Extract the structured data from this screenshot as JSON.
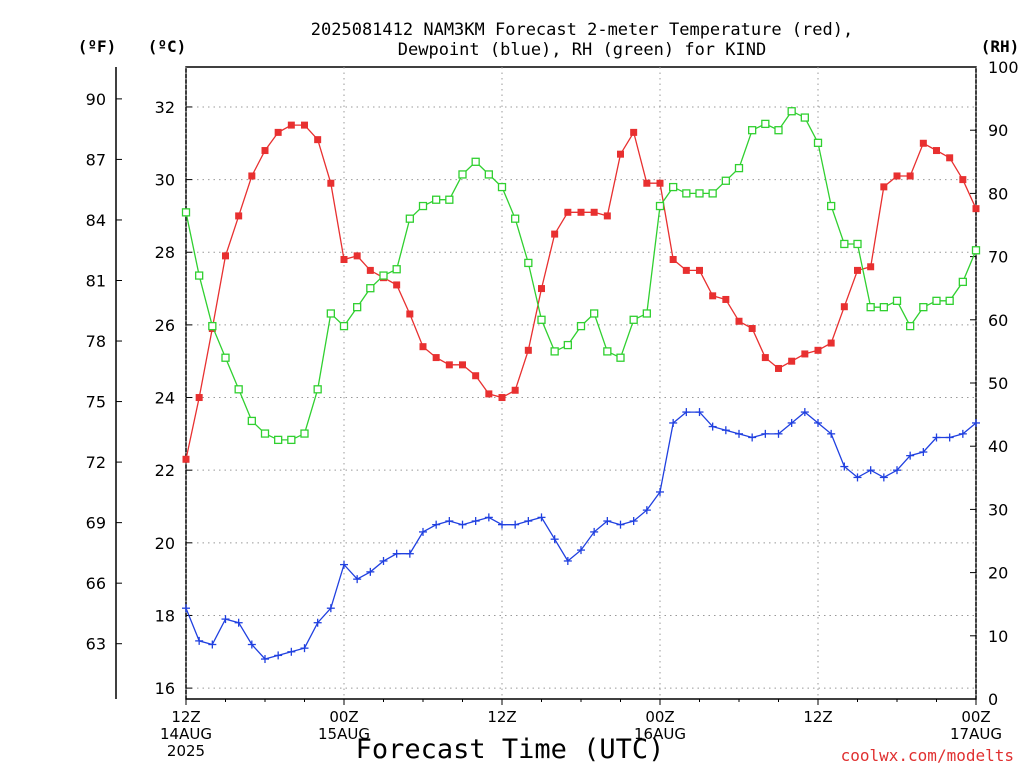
{
  "chart_data": {
    "type": "line",
    "title_line1": "2025081412 NAM3KM Forecast 2-meter Temperature (red),",
    "title_line2": "Dewpoint (blue), RH (green) for KIND",
    "axes": {
      "f": {
        "label": "(ºF)",
        "ticks": [
          "90",
          "87",
          "84",
          "81",
          "78",
          "75",
          "72",
          "69",
          "66",
          "63"
        ]
      },
      "c": {
        "label": "(ºC)",
        "ticks": [
          "32",
          "30",
          "28",
          "26",
          "24",
          "22",
          "20",
          "18",
          "16"
        ],
        "ylim": [
          15.7,
          33.1
        ]
      },
      "rh": {
        "label": "(RH)",
        "ticks": [
          "100",
          "90",
          "80",
          "70",
          "60",
          "50",
          "40",
          "30",
          "20",
          "10",
          "0"
        ],
        "ylim": [
          0,
          100
        ]
      }
    },
    "x_ticks": [
      {
        "hour": 0,
        "lines": [
          "12Z",
          "14AUG",
          "2025"
        ]
      },
      {
        "hour": 12,
        "lines": [
          "00Z",
          "15AUG"
        ]
      },
      {
        "hour": 24,
        "lines": [
          "12Z"
        ]
      },
      {
        "hour": 36,
        "lines": [
          "00Z",
          "16AUG"
        ]
      },
      {
        "hour": 48,
        "lines": [
          "12Z"
        ]
      },
      {
        "hour": 60,
        "lines": [
          "00Z",
          "17AUG"
        ]
      }
    ],
    "xlabel": "Forecast Time (UTC)",
    "credit": "coolwx.com/modelts",
    "xlim": [
      0,
      60
    ],
    "x": [
      0,
      1,
      2,
      3,
      4,
      5,
      6,
      7,
      8,
      9,
      10,
      11,
      12,
      13,
      14,
      15,
      16,
      17,
      18,
      19,
      20,
      21,
      22,
      23,
      24,
      25,
      26,
      27,
      28,
      29,
      30,
      31,
      32,
      33,
      34,
      35,
      36,
      37,
      38,
      39,
      40,
      41,
      42,
      43,
      44,
      45,
      46,
      47,
      48,
      49,
      50,
      51,
      52,
      53,
      54,
      55,
      56,
      57,
      58,
      59,
      60
    ],
    "series": [
      {
        "name": "Temperature",
        "color": "#e83030",
        "marker": "filled-square",
        "axis": "c",
        "values": [
          22.3,
          24.0,
          25.9,
          27.9,
          29.0,
          30.1,
          30.8,
          31.3,
          31.5,
          31.5,
          31.1,
          29.9,
          27.8,
          27.9,
          27.5,
          27.3,
          27.1,
          26.3,
          25.4,
          25.1,
          24.9,
          24.9,
          24.6,
          24.1,
          24.0,
          24.2,
          25.3,
          27.0,
          28.5,
          29.1,
          29.1,
          29.1,
          29.0,
          30.7,
          31.3,
          29.9,
          29.9,
          27.8,
          27.5,
          27.5,
          26.8,
          26.7,
          26.1,
          25.9,
          25.1,
          24.8,
          25.0,
          25.2,
          25.3,
          25.5,
          26.5,
          27.5,
          27.6,
          29.8,
          30.1,
          30.1,
          31.0,
          30.8,
          30.6,
          30.0,
          29.2
        ]
      },
      {
        "name": "Dewpoint",
        "color": "#2040e0",
        "marker": "plus",
        "axis": "c",
        "values": [
          18.2,
          17.3,
          17.2,
          17.9,
          17.8,
          17.2,
          16.8,
          16.9,
          17.0,
          17.1,
          17.8,
          18.2,
          19.4,
          19.0,
          19.2,
          19.5,
          19.7,
          19.7,
          20.3,
          20.5,
          20.6,
          20.5,
          20.6,
          20.7,
          20.5,
          20.5,
          20.6,
          20.7,
          20.1,
          19.5,
          19.8,
          20.3,
          20.6,
          20.5,
          20.6,
          20.9,
          21.4,
          23.3,
          23.6,
          23.6,
          23.2,
          23.1,
          23.0,
          22.9,
          23.0,
          23.0,
          23.3,
          23.6,
          23.3,
          23.0,
          22.1,
          21.8,
          22.0,
          21.8,
          22.0,
          22.4,
          22.5,
          22.9,
          22.9,
          23.0,
          23.3
        ]
      },
      {
        "name": "RH",
        "color": "#30d030",
        "marker": "open-square",
        "axis": "rh",
        "values": [
          77,
          67,
          59,
          54,
          49,
          44,
          42,
          41,
          41,
          42,
          49,
          61,
          59,
          62,
          65,
          67,
          68,
          76,
          78,
          79,
          79,
          83,
          85,
          83,
          81,
          76,
          69,
          60,
          55,
          56,
          59,
          61,
          55,
          54,
          60,
          61,
          78,
          81,
          80,
          80,
          80,
          82,
          84,
          90,
          91,
          90,
          93,
          92,
          88,
          78,
          72,
          72,
          62,
          62,
          63,
          59,
          62,
          63,
          63,
          66,
          71
        ]
      }
    ]
  }
}
